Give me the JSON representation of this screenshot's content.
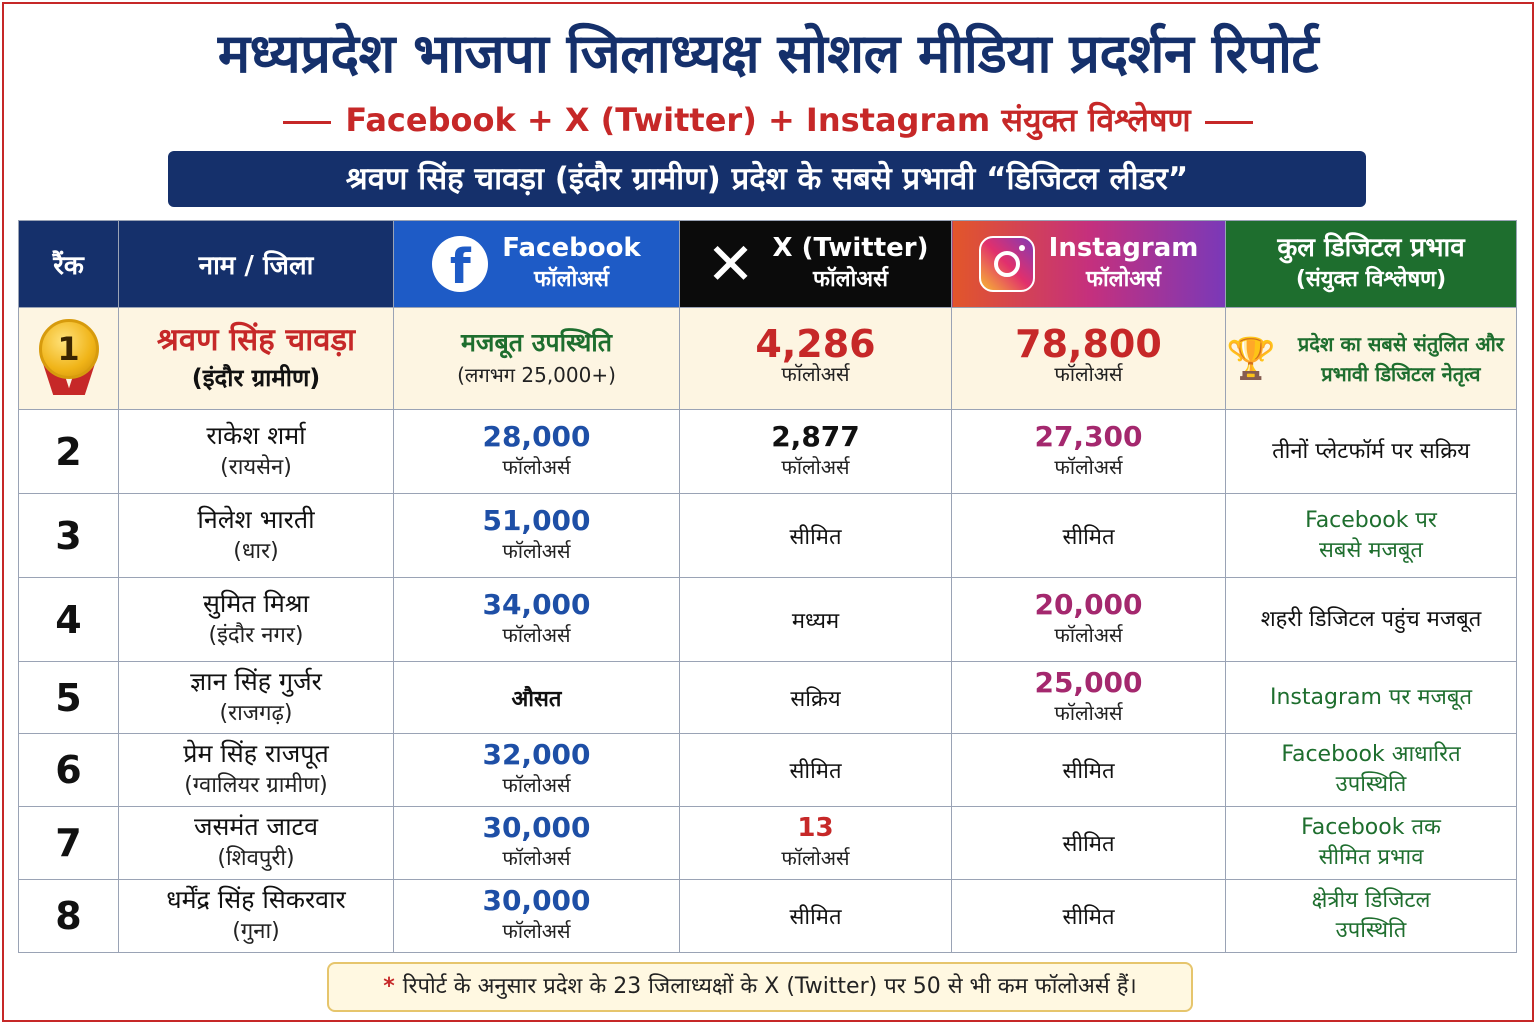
{
  "header": {
    "title": "मध्यप्रदेश भाजपा जिलाध्यक्ष सोशल मीडिया प्रदर्शन रिपोर्ट",
    "subtitle": "Facebook + X (Twitter) + Instagram संयुक्त विश्लेषण",
    "banner": "श्रवण सिंह चावड़ा (इंदौर ग्रामीण) प्रदेश के सबसे प्रभावी “डिजिटल लीडर”"
  },
  "columns": {
    "rank": "रैंक",
    "name": "नाम / जिला",
    "facebook": {
      "title": "Facebook",
      "sub": "फॉलोअर्स",
      "icon": "facebook-icon"
    },
    "x": {
      "title": "X (Twitter)",
      "sub": "फॉलोअर्स",
      "icon": "x-icon"
    },
    "instagram": {
      "title": "Instagram",
      "sub": "फॉलोअर्स",
      "icon": "instagram-icon"
    },
    "total": {
      "title": "कुल डिजिटल प्रभाव",
      "sub": "(संयुक्त विश्लेषण)"
    }
  },
  "rows": [
    {
      "rank": "1",
      "name": "श्रवण सिंह चावड़ा",
      "district": "(इंदौर ग्रामीण)",
      "facebook": {
        "value": "मजबूत उपस्थिति",
        "unit": "(लगभग 25,000+)"
      },
      "x": {
        "value": "4,286",
        "unit": "फॉलोअर्स"
      },
      "instagram": {
        "value": "78,800",
        "unit": "फॉलोअर्स"
      },
      "impact": "प्रदेश का सबसे संतुलित और प्रभावी डिजिटल नेतृत्व"
    },
    {
      "rank": "2",
      "name": "राकेश शर्मा",
      "district": "(रायसेन)",
      "facebook": {
        "value": "28,000",
        "unit": "फॉलोअर्स"
      },
      "x": {
        "value": "2,877",
        "unit": "फॉलोअर्स"
      },
      "instagram": {
        "value": "27,300",
        "unit": "फॉलोअर्स"
      },
      "impact": "तीनों प्लेटफॉर्म पर सक्रिय"
    },
    {
      "rank": "3",
      "name": "निलेश भारती",
      "district": "(धार)",
      "facebook": {
        "value": "51,000",
        "unit": "फॉलोअर्स"
      },
      "x": {
        "value": "सीमित"
      },
      "instagram": {
        "value": "सीमित"
      },
      "impact": "Facebook पर सबसे मजबूत"
    },
    {
      "rank": "4",
      "name": "सुमित मिश्रा",
      "district": "(इंदौर नगर)",
      "facebook": {
        "value": "34,000",
        "unit": "फॉलोअर्स"
      },
      "x": {
        "value": "मध्यम"
      },
      "instagram": {
        "value": "20,000",
        "unit": "फॉलोअर्स"
      },
      "impact": "शहरी डिजिटल पहुंच मजबूत"
    },
    {
      "rank": "5",
      "name": "ज्ञान सिंह गुर्जर",
      "district": "(राजगढ़)",
      "facebook": {
        "value": "औसत"
      },
      "x": {
        "value": "सक्रिय"
      },
      "instagram": {
        "value": "25,000",
        "unit": "फॉलोअर्स"
      },
      "impact": "Instagram पर मजबूत"
    },
    {
      "rank": "6",
      "name": "प्रेम सिंह राजपूत",
      "district": "(ग्वालियर ग्रामीण)",
      "facebook": {
        "value": "32,000",
        "unit": "फॉलोअर्स"
      },
      "x": {
        "value": "सीमित"
      },
      "instagram": {
        "value": "सीमित"
      },
      "impact": "Facebook आधारित उपस्थिति"
    },
    {
      "rank": "7",
      "name": "जसमंत जाटव",
      "district": "(शिवपुरी)",
      "facebook": {
        "value": "30,000",
        "unit": "फॉलोअर्स"
      },
      "x": {
        "value": "13",
        "unit": "फॉलोअर्स"
      },
      "instagram": {
        "value": "सीमित"
      },
      "impact": "Facebook तक सीमित प्रभाव"
    },
    {
      "rank": "8",
      "name": "धर्मेंद्र सिंह सिकरवार",
      "district": "(गुना)",
      "facebook": {
        "value": "30,000",
        "unit": "फॉलोअर्स"
      },
      "x": {
        "value": "सीमित"
      },
      "instagram": {
        "value": "सीमित"
      },
      "impact": "क्षेत्रीय डिजिटल उपस्थिति"
    }
  ],
  "note": "रिपोर्ट के अनुसार प्रदेश के 23 जिलाध्यक्षों के X (Twitter) पर 50 से भी कम फॉलोअर्स हैं।",
  "colors": {
    "navy": "#15306b",
    "red": "#c62828",
    "facebook": "#1e5bc6",
    "green": "#1e6e2e",
    "magenta": "#a4286e"
  }
}
